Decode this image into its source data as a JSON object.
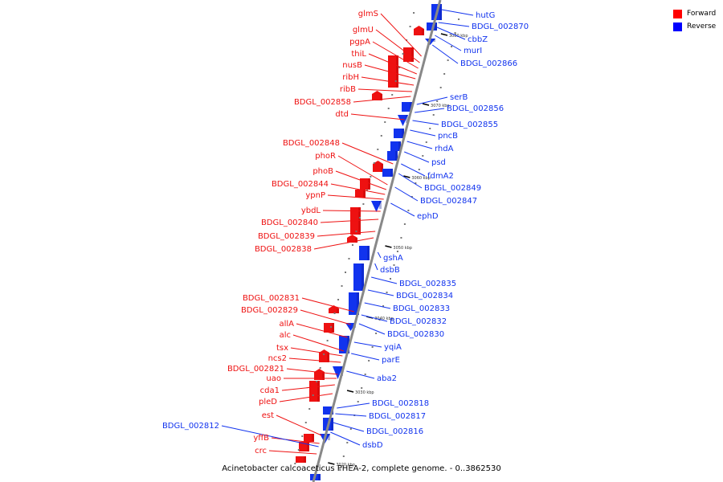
{
  "caption": "Acinetobacter calcoaceticus PHEA-2, complete genome. - 0..3862530",
  "legend": [
    {
      "label": "Forward",
      "color": "#ff0000"
    },
    {
      "label": "Reverse",
      "color": "#0000ff"
    }
  ],
  "colors": {
    "forward": "#ee1111",
    "reverse": "#1133ee",
    "backbone": "#888888"
  },
  "ticks": [
    "3080 kbp",
    "3070 kbp",
    "3060 kbp",
    "3050 kbp",
    "3040 kbp",
    "3030 kbp",
    "3020 kbp"
  ],
  "forward_genes": [
    "glmS",
    "glmU",
    "pgpA",
    "thiL",
    "nusB",
    "ribH",
    "ribB",
    "BDGL_002858",
    "dtd",
    "BDGL_002848",
    "phoR",
    "phoB",
    "BDGL_002844",
    "ypnP",
    "ybdL",
    "BDGL_002840",
    "BDGL_002839",
    "BDGL_002838",
    "BDGL_002831",
    "BDGL_002829",
    "allA",
    "alc",
    "tsx",
    "ncs2",
    "BDGL_002821",
    "uao",
    "cda1",
    "pleD",
    "est",
    "yffB",
    "crc"
  ],
  "reverse_genes": [
    "hutG",
    "BDGL_002870",
    "cbbZ",
    "murI",
    "BDGL_002866",
    "serB",
    "BDGL_002856",
    "BDGL_002855",
    "pncB",
    "rhdA",
    "psd",
    "fdmA2",
    "BDGL_002849",
    "BDGL_002847",
    "ephD",
    "gshA",
    "dsbB",
    "BDGL_002835",
    "BDGL_002834",
    "BDGL_002833",
    "BDGL_002832",
    "BDGL_002830",
    "yqiA",
    "parE",
    "aba2",
    "BDGL_002818",
    "BDGL_002817",
    "BDGL_002816",
    "dsbD"
  ],
  "left_blue_genes": [
    "BDGL_002812"
  ]
}
